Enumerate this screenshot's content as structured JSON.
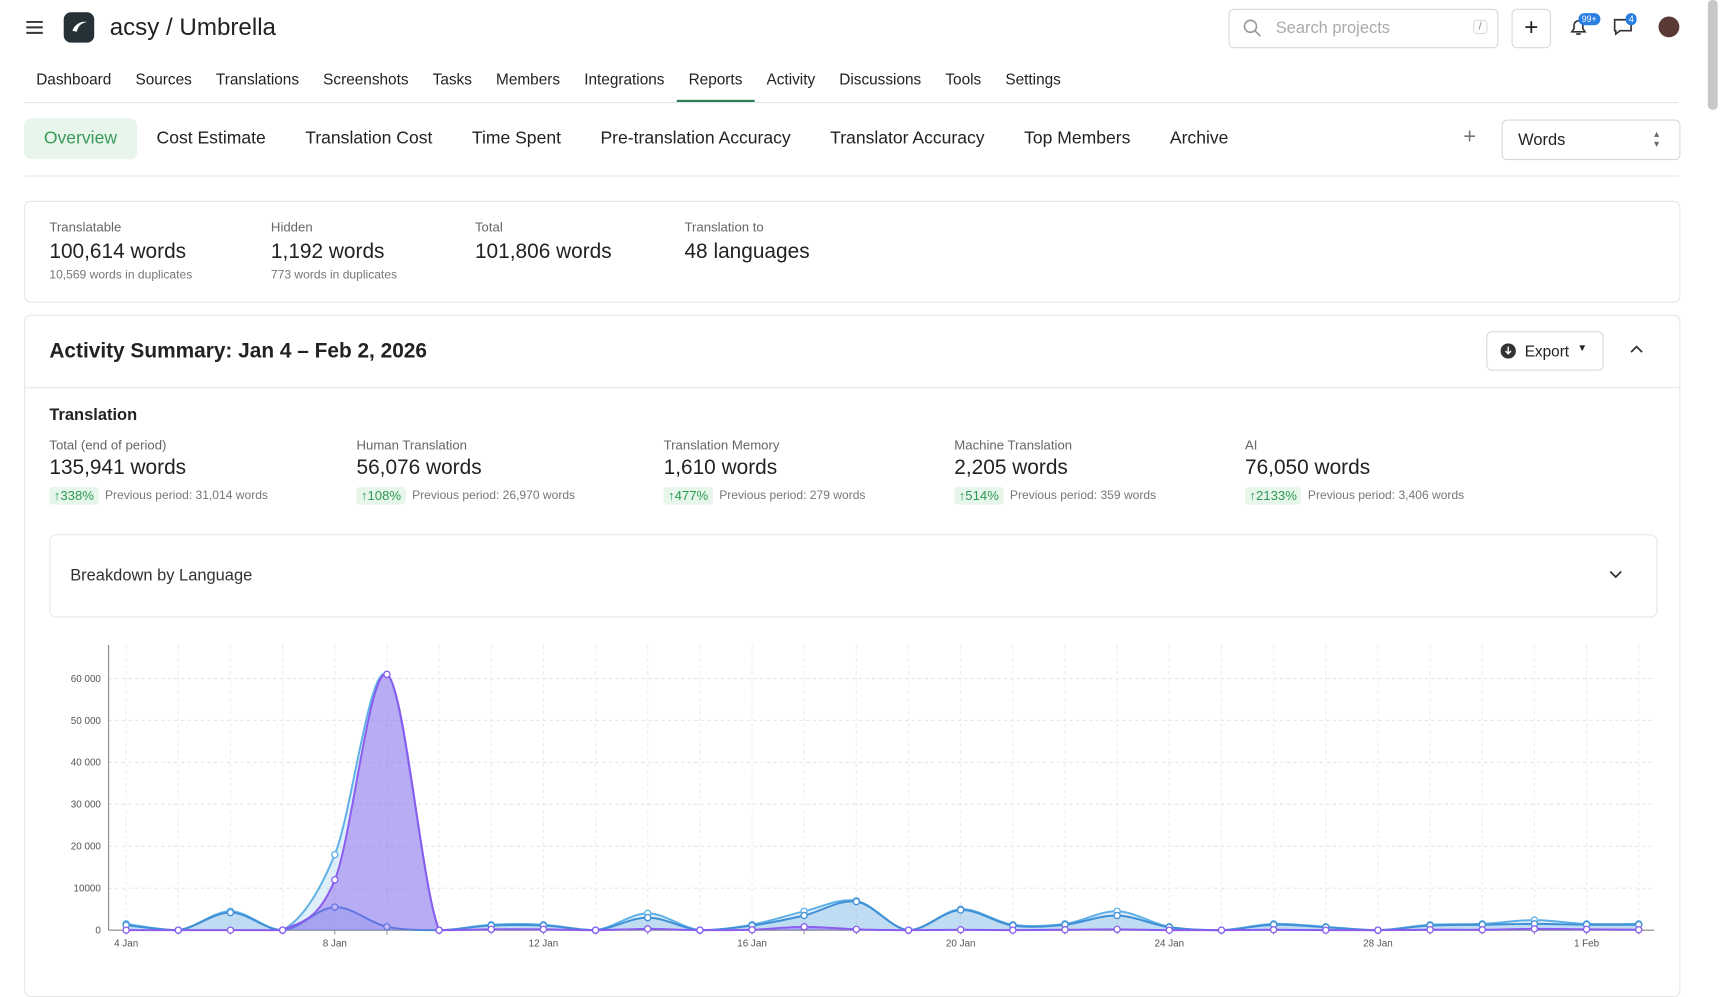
{
  "header": {
    "project_title": "acsy / Umbrella",
    "search_placeholder": "Search projects",
    "search_shortcut": "/",
    "notifications_badge": "99+",
    "messages_badge": "4"
  },
  "nav": {
    "items": [
      "Dashboard",
      "Sources",
      "Translations",
      "Screenshots",
      "Tasks",
      "Members",
      "Integrations",
      "Reports",
      "Activity",
      "Discussions",
      "Tools",
      "Settings"
    ],
    "active": 7
  },
  "report_tabs": {
    "items": [
      "Overview",
      "Cost Estimate",
      "Translation Cost",
      "Time Spent",
      "Pre-translation Accuracy",
      "Translator Accuracy",
      "Top Members",
      "Archive"
    ],
    "active": 0,
    "unit": "Words"
  },
  "stats": [
    {
      "label": "Translatable",
      "value": "100,614 words",
      "note": "10,569 words in duplicates"
    },
    {
      "label": "Hidden",
      "value": "1,192 words",
      "note": "773 words in duplicates"
    },
    {
      "label": "Total",
      "value": "101,806 words"
    },
    {
      "label": "Translation to",
      "value": "48 languages"
    }
  ],
  "summary": {
    "title": "Activity Summary: Jan 4 – Feb 2, 2026",
    "export": "Export",
    "section": "Translation",
    "cards": [
      {
        "label": "Total (end of period)",
        "value": "135,941 words",
        "change": "338%",
        "previous": "Previous period: 31,014 words"
      },
      {
        "label": "Human Translation",
        "value": "56,076 words",
        "change": "108%",
        "previous": "Previous period: 26,970 words"
      },
      {
        "label": "Translation Memory",
        "value": "1,610 words",
        "change": "477%",
        "previous": "Previous period: 279 words"
      },
      {
        "label": "Machine Translation",
        "value": "2,205 words",
        "change": "514%",
        "previous": "Previous period: 359 words"
      },
      {
        "label": "AI",
        "value": "76,050 words",
        "change": "2133%",
        "previous": "Previous period: 3,406 words"
      }
    ],
    "breakdown": "Breakdown by Language"
  },
  "chart_data": {
    "type": "area",
    "categories": [
      "4 Jan",
      null,
      null,
      null,
      "8 Jan",
      null,
      null,
      null,
      "12 Jan",
      null,
      null,
      null,
      "16 Jan",
      null,
      null,
      null,
      "20 Jan",
      null,
      null,
      null,
      "24 Jan",
      null,
      null,
      null,
      "28 Jan",
      null,
      null,
      null,
      "1 Feb",
      null
    ],
    "series": [
      {
        "color": "#5fb0e6",
        "values": [
          1500,
          0,
          4500,
          0,
          18000,
          61000,
          0,
          1300,
          1300,
          0,
          4000,
          0,
          1300,
          4500,
          7000,
          0,
          5000,
          1300,
          1500,
          4500,
          800,
          0,
          1500,
          800,
          0,
          1300,
          1500,
          2400,
          1500,
          1500
        ]
      },
      {
        "color": "#3f8fd6",
        "values": [
          1200,
          0,
          4200,
          0,
          5500,
          800,
          0,
          1100,
          1100,
          0,
          3000,
          0,
          1100,
          3500,
          6800,
          0,
          4800,
          1100,
          1300,
          3500,
          700,
          0,
          1300,
          700,
          0,
          1100,
          1300,
          1500,
          1300,
          1300
        ]
      },
      {
        "color": "#8a5cf0",
        "values": [
          0,
          0,
          0,
          0,
          12000,
          61000,
          0,
          200,
          200,
          0,
          300,
          0,
          100,
          800,
          200,
          0,
          100,
          0,
          100,
          200,
          0,
          0,
          100,
          0,
          0,
          100,
          100,
          300,
          200,
          100
        ]
      }
    ],
    "ylim": [
      0,
      68000
    ],
    "yticks": [
      0,
      10000,
      {
        "value": 20000,
        "label": "20 000"
      },
      {
        "value": 30000,
        "label": "30 000"
      },
      {
        "value": 40000,
        "label": "40 000"
      },
      {
        "value": 50000,
        "label": "50 000"
      },
      {
        "value": 60000,
        "label": "60 000"
      }
    ],
    "grid": true
  }
}
